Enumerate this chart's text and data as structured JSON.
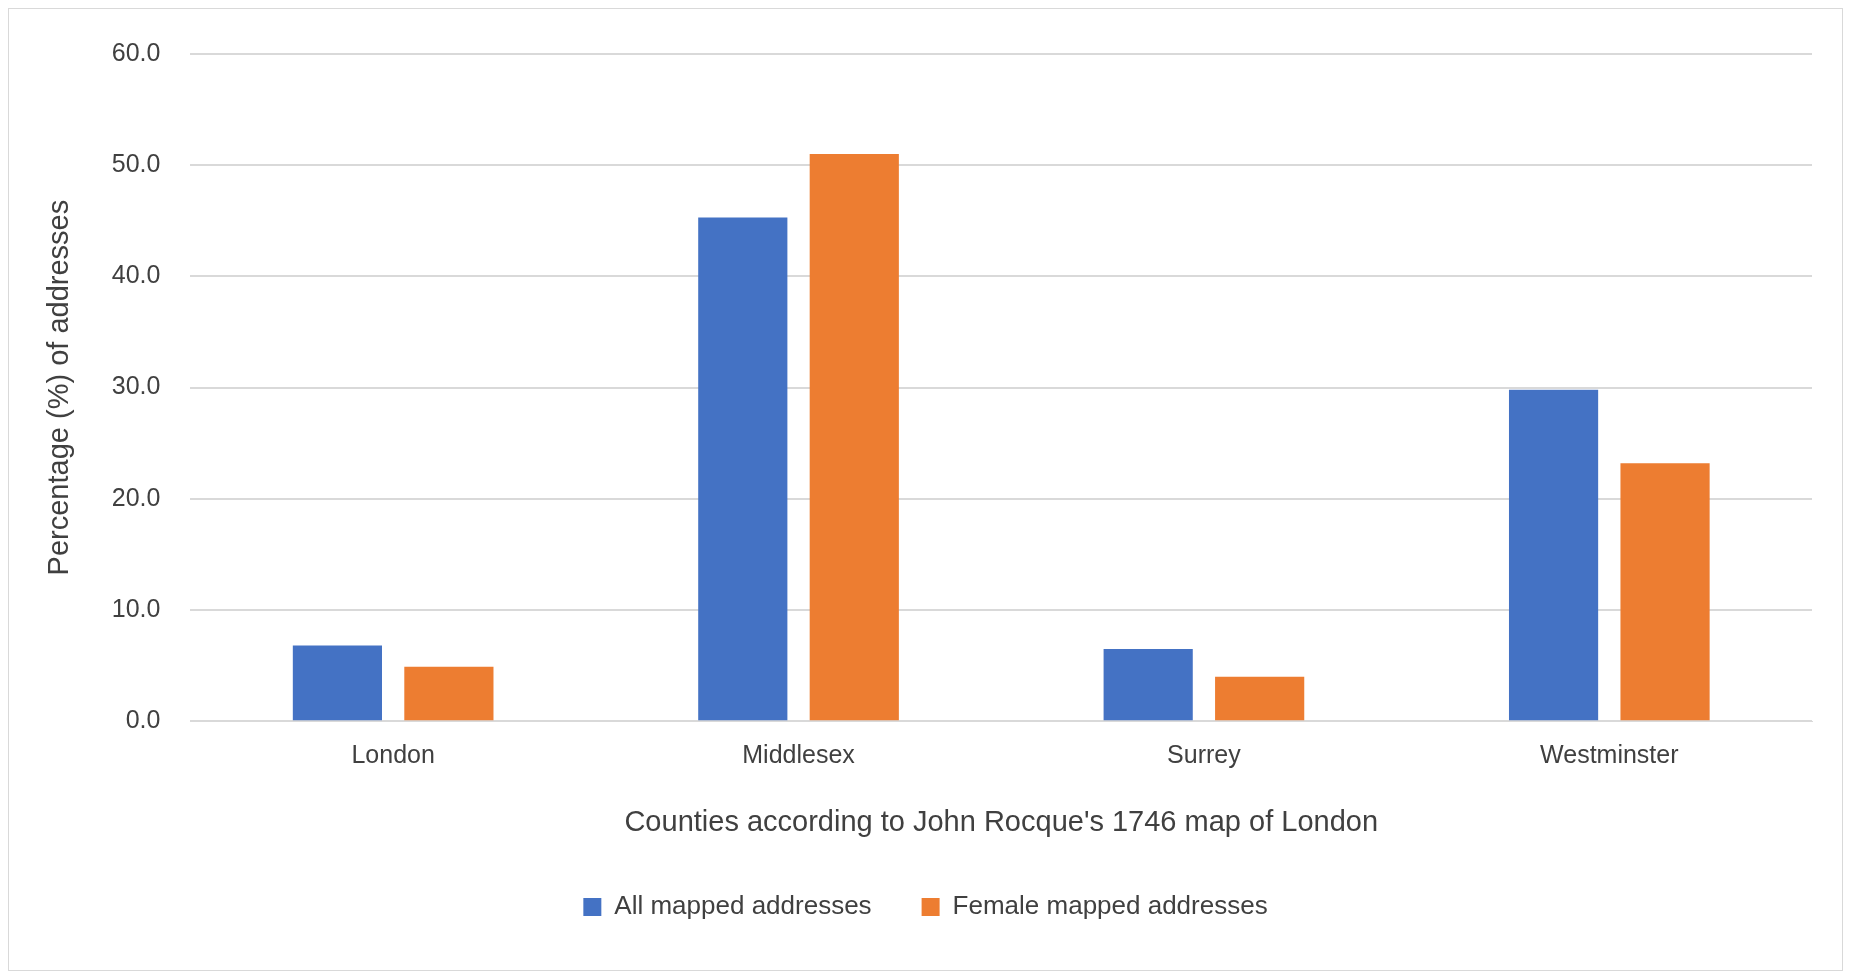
{
  "chart_data": {
    "type": "bar",
    "xlabel": "Counties according to John Rocque's 1746 map of London",
    "ylabel": "Percentage (%) of addresses",
    "categories": [
      "London",
      "Middlesex",
      "Surrey",
      "Westminster"
    ],
    "series": [
      {
        "name": "All mapped addresses",
        "color": "#4472c4",
        "values": [
          6.8,
          45.3,
          6.5,
          29.8
        ]
      },
      {
        "name": "Female mapped addresses",
        "color": "#ed7d31",
        "values": [
          4.9,
          51.0,
          4.0,
          23.2
        ]
      }
    ],
    "ylim": [
      0,
      60
    ],
    "yticks": [
      {
        "value": 0,
        "label": "0.0"
      },
      {
        "value": 10,
        "label": "10.0"
      },
      {
        "value": 20,
        "label": "20.0"
      },
      {
        "value": 30,
        "label": "30.0"
      },
      {
        "value": 40,
        "label": "40.0"
      },
      {
        "value": 50,
        "label": "50.0"
      },
      {
        "value": 60,
        "label": "60.0"
      }
    ],
    "grid": "y",
    "legend": "bottom"
  }
}
